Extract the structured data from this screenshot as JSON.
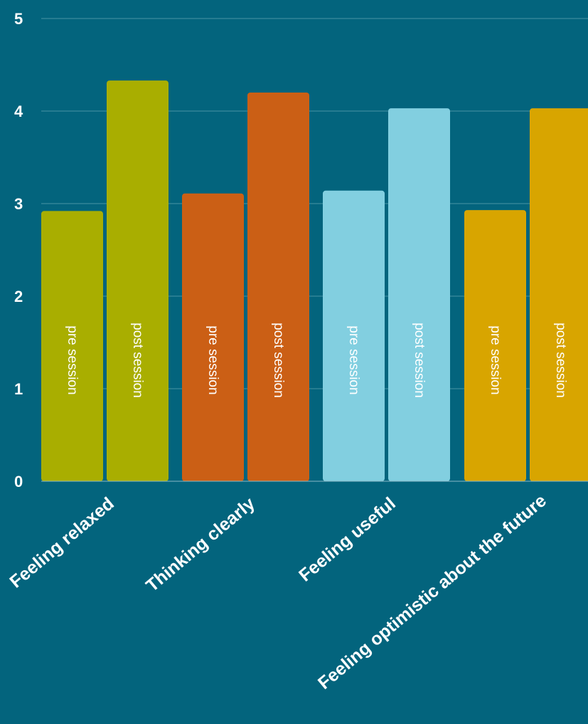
{
  "chart_data": {
    "type": "bar",
    "categories": [
      "Feeling relaxed",
      "Thinking clearly",
      "Feeling useful",
      "Feeling optimistic about the future"
    ],
    "series": [
      {
        "name": "pre session",
        "values": [
          2.92,
          3.11,
          3.14,
          2.93
        ]
      },
      {
        "name": "post session",
        "values": [
          4.33,
          4.2,
          4.03,
          4.03
        ]
      }
    ],
    "bar_labels": [
      "pre session",
      "post session"
    ],
    "category_colors": [
      "#a9ae00",
      "#cb5f15",
      "#82cfe0",
      "#d8a500"
    ],
    "ylim": [
      0,
      5
    ],
    "yticks": [
      "0",
      "1",
      "2",
      "3",
      "4",
      "5"
    ],
    "grid": true,
    "legend": "none"
  }
}
